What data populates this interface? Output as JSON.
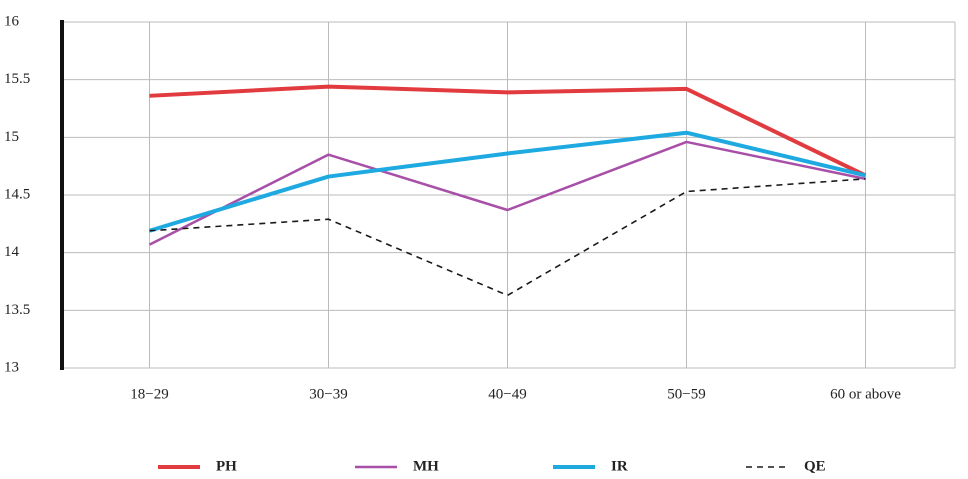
{
  "chart_data": {
    "type": "line",
    "categories": [
      "18−29",
      "30−39",
      "40−49",
      "50−59",
      "60 or above"
    ],
    "series": [
      {
        "name": "PH",
        "color": "#e23b3f",
        "linewidth": 4,
        "dashed": false,
        "values": [
          15.36,
          15.44,
          15.39,
          15.42,
          14.67
        ]
      },
      {
        "name": "MH",
        "color": "#a84fa8",
        "linewidth": 2.5,
        "dashed": false,
        "values": [
          14.07,
          14.85,
          14.37,
          14.96,
          14.64
        ]
      },
      {
        "name": "IR",
        "color": "#1ea9e1",
        "linewidth": 4,
        "dashed": false,
        "values": [
          14.19,
          14.66,
          14.86,
          15.04,
          14.67
        ]
      },
      {
        "name": "QE",
        "color": "#1a1a1a",
        "linewidth": 1.6,
        "dashed": true,
        "values": [
          14.19,
          14.29,
          13.63,
          14.53,
          14.64
        ]
      }
    ],
    "ylim": [
      13,
      16
    ],
    "yticks": [
      13,
      13.5,
      14,
      14.5,
      15,
      15.5,
      16
    ],
    "grid": true,
    "legend": "bottom"
  }
}
